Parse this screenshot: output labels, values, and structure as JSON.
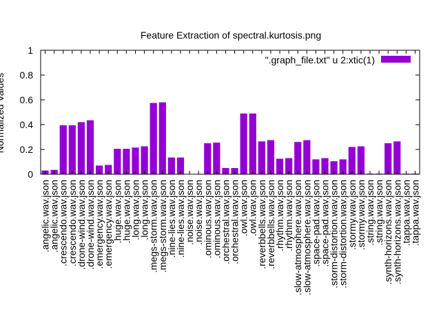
{
  "chart_data": {
    "type": "bar",
    "title": "Feature Extraction of spectral.kurtosis.png",
    "ylabel": "Normalized Values",
    "xlabel": "",
    "ylim": [
      0,
      1
    ],
    "yticks": [
      "0",
      "0.2",
      "0.4",
      "0.6",
      "0.8",
      "1"
    ],
    "ytick_values": [
      0,
      0.2,
      0.4,
      0.6,
      0.8,
      1
    ],
    "legend": {
      "position": "top-right",
      "label": "\".graph_file.txt\" u 2:xtic(1)"
    },
    "bar_color": "#9400d3",
    "grid": false,
    "categories": [
      ".angelic.wav.json",
      ".angelic.wav.json",
      ".crescendo.wav.json",
      ".crescendo.wav.json",
      ".drone-wind.wav.json",
      ".drone-wind.wav.json",
      ".emergency.wav.json",
      ".emergency.wav.json",
      ".huge.wav.json",
      ".huge.wav.json",
      ".long.wav.json",
      ".long.wav.json",
      ".megs-storm.wav.json",
      ".megs-storm.wav.json",
      ".nine-lies.wav.json",
      ".nine-lies.wav.json",
      ".noise.wav.json",
      ".noise.wav.json",
      ".ominous.wav.json",
      ".ominous.wav.json",
      ".orchestral.wav.json",
      ".orchestral.wav.json",
      ".owl.wav.json",
      ".owl.wav.json",
      ".reverbbells.wav.json",
      ".reverbbells.wav.json",
      ".rhythm.wav.json",
      ".rhythm.wav.json",
      ".slow-atmosphere.wav.json",
      ".slow-atmosphere.wav.json",
      ".space-pad.wav.json",
      ".space-pad.wav.json",
      ".storm-distortion.wav.json",
      ".storm-distortion.wav.json",
      ".stormy.wav.json",
      ".stormy.wav.json",
      ".string.wav.json",
      ".string.wav.json",
      ".synth-horizons.wav.json",
      ".synth-horizons.wav.json",
      ".tappa.wav.json",
      ".tappa.wav.json"
    ],
    "values": [
      0.03,
      0.035,
      0.395,
      0.395,
      0.42,
      0.435,
      0.07,
      0.075,
      0.205,
      0.205,
      0.215,
      0.225,
      0.575,
      0.58,
      0.135,
      0.135,
      0.0,
      0.0,
      0.25,
      0.255,
      0.05,
      0.05,
      0.49,
      0.49,
      0.265,
      0.275,
      0.125,
      0.13,
      0.26,
      0.275,
      0.12,
      0.13,
      0.105,
      0.12,
      0.22,
      0.225,
      0.005,
      0.005,
      0.25,
      0.265,
      0.005,
      0.005
    ]
  }
}
